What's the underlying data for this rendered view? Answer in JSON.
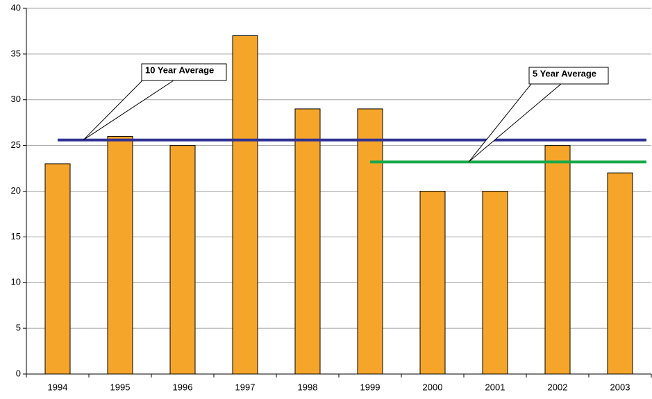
{
  "chart_data": {
    "type": "bar",
    "categories": [
      "1994",
      "1995",
      "1996",
      "1997",
      "1998",
      "1999",
      "2000",
      "2001",
      "2002",
      "2003"
    ],
    "values": [
      23,
      26,
      25,
      37,
      29,
      29,
      20,
      20,
      25,
      22
    ],
    "color": "#f5a62a",
    "ylim": [
      0,
      40
    ],
    "yticks": [
      0,
      5,
      10,
      15,
      20,
      25,
      30,
      35,
      40
    ],
    "grid": true,
    "average_lines": [
      {
        "label": "10 Year Average",
        "value": 25.6,
        "from": "1994",
        "color": "#2e3192"
      },
      {
        "label": "5 Year Average",
        "value": 23.2,
        "from": "1999",
        "color": "#1aa84a"
      }
    ]
  }
}
